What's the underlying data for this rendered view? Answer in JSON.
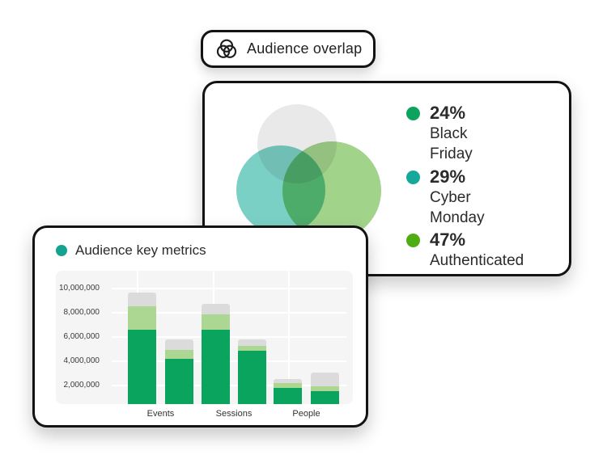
{
  "badge": {
    "label": "Audience overlap",
    "icon": "venn-diagram-icon"
  },
  "chart_data": [
    {
      "type": "venn",
      "title": "Audience overlap",
      "slices": [
        {
          "value": "24%",
          "label": "Black Friday",
          "color": "#0DA35F"
        },
        {
          "value": "29%",
          "label": "Cyber Monday",
          "color": "#16A89A"
        },
        {
          "value": "47%",
          "label": "Authenticated",
          "color": "#4EAD10"
        }
      ],
      "venn_circle_colors": {
        "gray": "#E9E9E9",
        "teal": "#7BD0C5",
        "green": "#A2D38B"
      },
      "legend_position": "right"
    },
    {
      "type": "bar",
      "stacked": true,
      "title": "Audience key metrics",
      "dot_color": "#13A38F",
      "categories": [
        "Events",
        "Sessions",
        "People"
      ],
      "bars_per_category": 2,
      "series": [
        {
          "name": "primary",
          "color": "#0BA45F",
          "values": [
            6600000,
            4200000,
            6600000,
            4900000,
            1800000,
            1500000
          ]
        },
        {
          "name": "secondary",
          "color": "#ABD792",
          "values": [
            1950000,
            750000,
            1300000,
            400000,
            350000,
            400000
          ]
        },
        {
          "name": "tertiary",
          "color": "#DBDBDB",
          "values": [
            1100000,
            850000,
            850000,
            500000,
            350000,
            1150000
          ]
        }
      ],
      "y_ticks": [
        {
          "label": "10,000,000",
          "value": 10000000
        },
        {
          "label": "8,000,000",
          "value": 8000000
        },
        {
          "label": "6,000,000",
          "value": 6000000
        },
        {
          "label": "4,000,000",
          "value": 4000000
        },
        {
          "label": "2,000,000",
          "value": 2000000
        }
      ],
      "ylim": [
        0,
        11470000
      ],
      "xlabel": "",
      "ylabel": "",
      "grid": true,
      "plot_background": "#F5F5F5",
      "gridline_color": "#FFFFFF"
    }
  ]
}
